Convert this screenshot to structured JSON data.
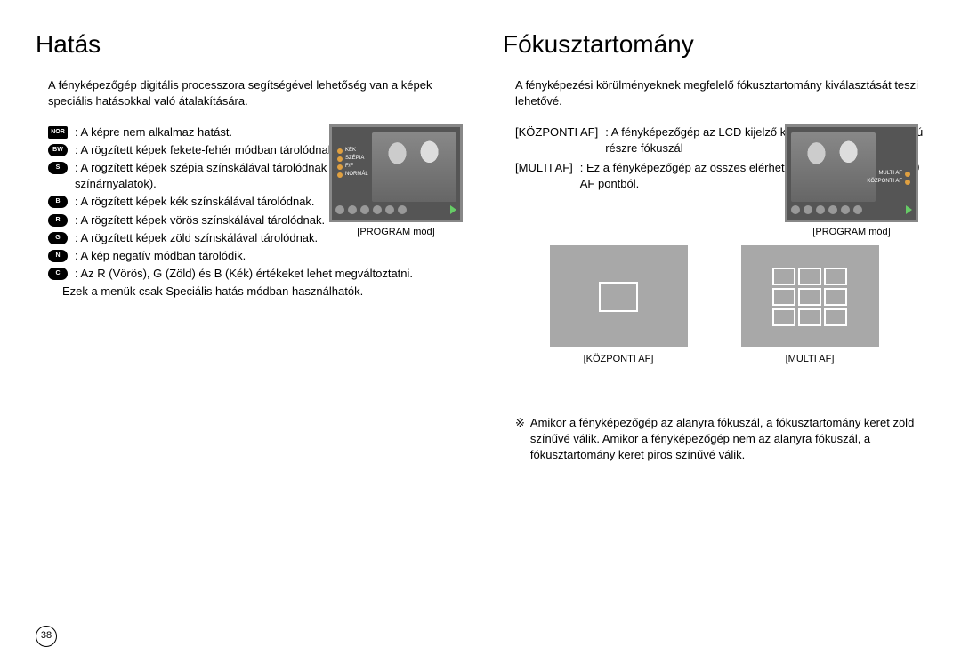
{
  "left": {
    "title": "Hatás",
    "intro": "A fényképezőgép digitális processzora segítségével lehetőség van a képek speciális hatásokkal való átalakítására.",
    "effects": [
      {
        "icon": "NOR",
        "shape": "nor",
        "desc": ": A képre nem alkalmaz hatást."
      },
      {
        "icon": "BW",
        "shape": "pill",
        "desc": ": A rögzített képek fekete-fehér módban tárolódnak."
      },
      {
        "icon": "S",
        "shape": "pill",
        "desc": ": A rögzített képek szépia színskálával tárolódnak (sárgás-barna színárnyalatok)."
      },
      {
        "icon": "B",
        "shape": "pill",
        "desc": ": A rögzített képek kék színskálával tárolódnak."
      },
      {
        "icon": "R",
        "shape": "pill",
        "desc": ": A rögzített képek vörös színskálával tárolódnak."
      },
      {
        "icon": "G",
        "shape": "pill",
        "desc": ": A rögzített képek zöld színskálával tárolódnak."
      },
      {
        "icon": "N",
        "shape": "pill",
        "desc": ": A kép negatív módban tárolódik."
      },
      {
        "icon": "C",
        "shape": "pill",
        "desc": ": Az R (Vörös), G (Zöld) és B (Kék) értékeket lehet megváltoztatni."
      }
    ],
    "extra_line": "Ezek a menük csak Speciális hatás módban használhatók.",
    "lcd": {
      "menu": [
        "KÉK",
        "SZÉPIA",
        "F/F",
        "NORMÁL"
      ],
      "caption": "[PROGRAM mód]"
    }
  },
  "right": {
    "title": "Fókusztartomány",
    "intro": "A fényképezési körülményeknek megfelelő fókusztartomány kiválasztását teszi lehetővé.",
    "defs": [
      {
        "label": "[KÖZPONTI AF]",
        "desc": ": A fényképezőgép az LCD kijelző közepén levő téglalap alakú részre fókuszál"
      },
      {
        "label": "[MULTI AF]",
        "desc": ": Ez a fényképezőgép az összes elérhető AF pontot kiválasztja a 9 AF pontból."
      }
    ],
    "lcd": {
      "menu": [
        "MULTI AF",
        "KÖZPONTI AF"
      ],
      "caption": "[PROGRAM mód]"
    },
    "diagram_labels": {
      "center": "[KÖZPONTI AF]",
      "multi": "[MULTI AF]"
    },
    "note_ref": "※",
    "note": "Amikor a fényképezőgép az alanyra fókuszál, a fókusztartomány keret zöld színűvé válik. Amikor a fényképezőgép nem az alanyra fókuszál, a fókusztartomány keret piros színűvé válik."
  },
  "page_number": "38"
}
